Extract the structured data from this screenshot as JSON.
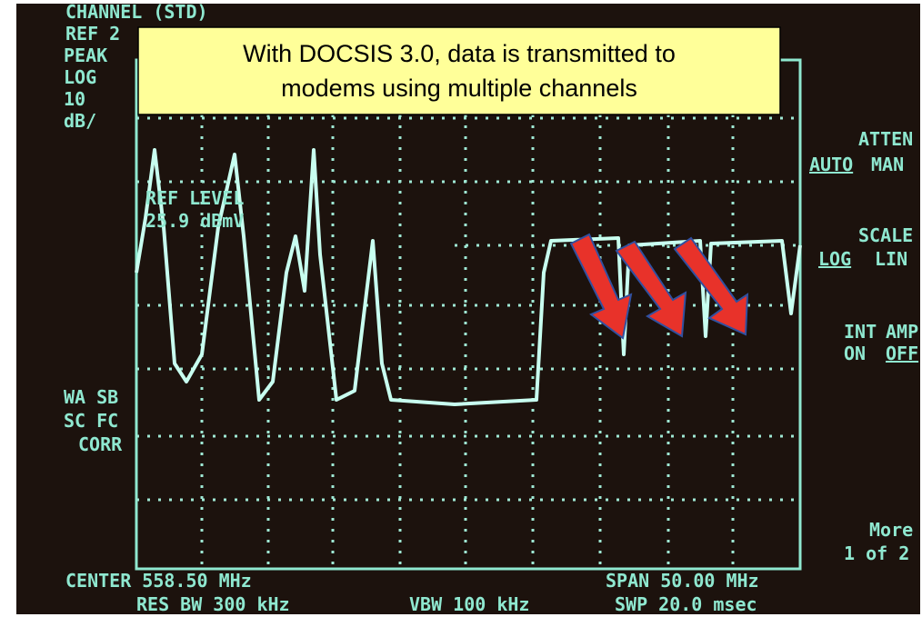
{
  "callout": {
    "line1": "With DOCSIS 3.0, data is transmitted to",
    "line2": "modems using multiple channels"
  },
  "screen": {
    "top": "CHANNEL     (STD)",
    "left": [
      "REF 2",
      "PEAK",
      "LOG",
      "10",
      "dB/"
    ],
    "ref_level": [
      "REF LEVEL",
      "25.9 dBmV"
    ],
    "left_lower": [
      "WA SB",
      "SC FC",
      "CORR"
    ],
    "bottom": {
      "center": "CENTER 558.50 MHz",
      "span": "SPAN 50.00 MHz",
      "res_bw": "RES BW 300 kHz",
      "vbw": "VBW 100 kHz",
      "swp": "SWP 20.0 msec"
    },
    "softkeys": {
      "atten": "ATTEN",
      "auto": "AUTO",
      "man": "MAN",
      "scale": "SCALE",
      "log": "LOG",
      "lin": "LIN",
      "int": "INT",
      "amp": "AMP",
      "on": "ON",
      "off": "OFF",
      "more": "More",
      "page": "1 of 2"
    }
  }
}
